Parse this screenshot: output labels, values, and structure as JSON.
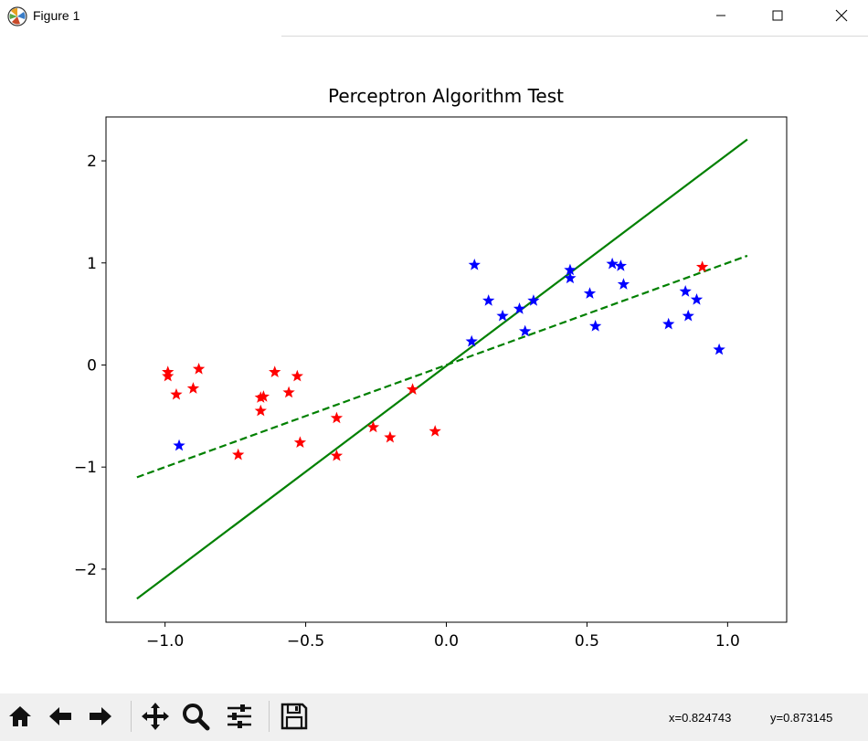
{
  "window": {
    "title": "Figure 1",
    "app_icon": "matplotlib-figure-icon",
    "controls": [
      "minimize-icon",
      "maximize-icon",
      "close-icon"
    ]
  },
  "toolbar": {
    "buttons": [
      "home-icon",
      "back-arrow-icon",
      "forward-arrow-icon",
      "pan-icon",
      "zoom-icon",
      "configure-subplots-icon",
      "save-icon"
    ],
    "coord_x": "x=0.824743",
    "coord_y": "y=0.873145"
  },
  "chart_data": {
    "type": "scatter",
    "title": "Perceptron Algorithm Test",
    "xlim": [
      -1.21,
      1.21
    ],
    "ylim": [
      -2.52,
      2.43
    ],
    "xticks": [
      -1.0,
      -0.5,
      0.0,
      0.5,
      1.0
    ],
    "xtick_labels": [
      "−1.0",
      "−0.5",
      "0.0",
      "0.5",
      "1.0"
    ],
    "yticks": [
      -2,
      -1,
      0,
      1,
      2
    ],
    "ytick_labels": [
      "−2",
      "−1",
      "0",
      "1",
      "2"
    ],
    "grid": false,
    "marker": "star",
    "series": [
      {
        "color": "#ff0000",
        "points": [
          [
            -0.99,
            -0.07
          ],
          [
            -0.99,
            -0.11
          ],
          [
            -0.96,
            -0.29
          ],
          [
            -0.9,
            -0.23
          ],
          [
            -0.88,
            -0.04
          ],
          [
            -0.74,
            -0.88
          ],
          [
            -0.66,
            -0.32
          ],
          [
            -0.66,
            -0.45
          ],
          [
            -0.65,
            -0.31
          ],
          [
            -0.61,
            -0.07
          ],
          [
            -0.56,
            -0.27
          ],
          [
            -0.53,
            -0.11
          ],
          [
            -0.52,
            -0.76
          ],
          [
            -0.39,
            -0.52
          ],
          [
            -0.39,
            -0.89
          ],
          [
            -0.26,
            -0.61
          ],
          [
            -0.2,
            -0.71
          ],
          [
            -0.12,
            -0.24
          ],
          [
            -0.04,
            -0.65
          ],
          [
            0.91,
            0.96
          ]
        ]
      },
      {
        "color": "#0000ff",
        "points": [
          [
            -0.95,
            -0.79
          ],
          [
            0.09,
            0.23
          ],
          [
            0.1,
            0.98
          ],
          [
            0.15,
            0.63
          ],
          [
            0.2,
            0.48
          ],
          [
            0.26,
            0.55
          ],
          [
            0.28,
            0.33
          ],
          [
            0.31,
            0.63
          ],
          [
            0.44,
            0.85
          ],
          [
            0.44,
            0.93
          ],
          [
            0.51,
            0.7
          ],
          [
            0.53,
            0.38
          ],
          [
            0.59,
            0.99
          ],
          [
            0.62,
            0.97
          ],
          [
            0.63,
            0.79
          ],
          [
            0.79,
            0.4
          ],
          [
            0.85,
            0.72
          ],
          [
            0.86,
            0.48
          ],
          [
            0.89,
            0.64
          ],
          [
            0.97,
            0.15
          ]
        ]
      }
    ],
    "lines": [
      {
        "style": "solid",
        "color": "#008000",
        "x": [
          -1.1,
          1.07
        ],
        "y": [
          -2.29,
          2.21
        ]
      },
      {
        "style": "dashed",
        "color": "#008000",
        "x": [
          -1.1,
          1.07
        ],
        "y": [
          -1.1,
          1.07
        ]
      }
    ]
  }
}
